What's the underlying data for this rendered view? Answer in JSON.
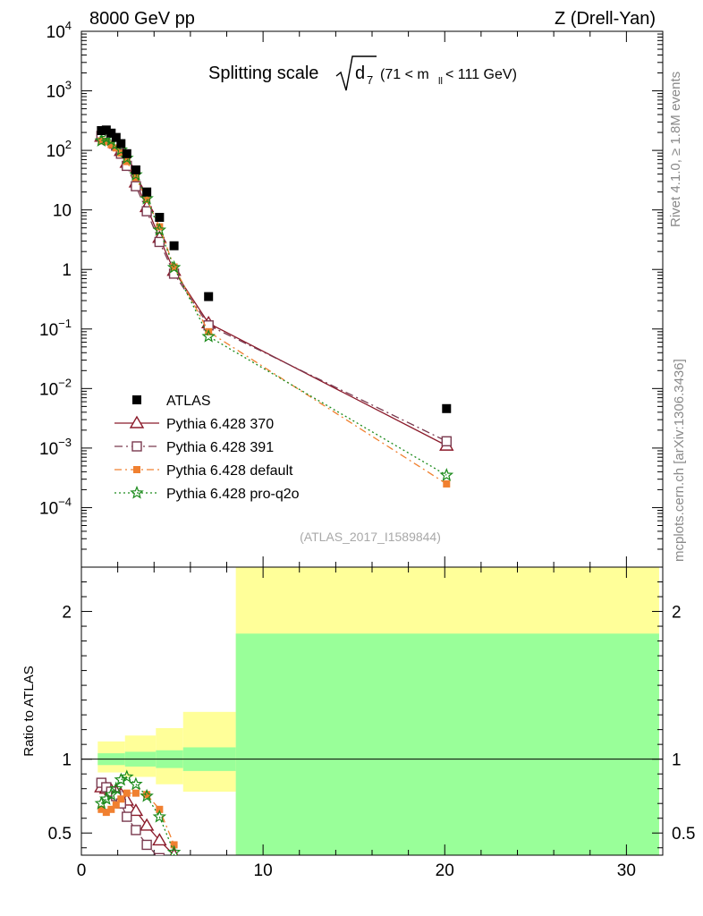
{
  "header": {
    "left": "8000 GeV pp",
    "right": "Z (Drell-Yan)"
  },
  "side_labels": {
    "rivet": "Rivet 4.1.0, ≥ 1.8M events",
    "mcplots": "mcplots.cern.ch [arXiv:1306.3436]"
  },
  "chart_data": {
    "type": "scatter",
    "title": "Splitting scale",
    "title_symbol": "d",
    "title_subscript": "7",
    "title_cut": "(71 < m",
    "title_cut_subscript": "ll",
    "title_cut_end": " < 111 GeV)",
    "reference": "(ATLAS_2017_I1589844)",
    "xlim": [
      0,
      32
    ],
    "ylim_log": [
      -5,
      4
    ],
    "ratio_ylim": [
      0.35,
      2.3
    ],
    "ratio_ylabel": "Ratio to ATLAS",
    "x_ticks": [
      {
        "v": 0,
        "label": "0"
      },
      {
        "v": 10,
        "label": "10"
      },
      {
        "v": 20,
        "label": "20"
      },
      {
        "v": 30,
        "label": "30"
      }
    ],
    "y_ticks": [
      {
        "v": -4,
        "base": "10",
        "exp": "−4"
      },
      {
        "v": -3,
        "base": "10",
        "exp": "−3"
      },
      {
        "v": -2,
        "base": "10",
        "exp": "−2"
      },
      {
        "v": -1,
        "base": "10",
        "exp": "−1"
      },
      {
        "v": 0,
        "base": "1",
        "exp": ""
      },
      {
        "v": 1,
        "base": "10",
        "exp": ""
      },
      {
        "v": 2,
        "base": "10",
        "exp": "2"
      },
      {
        "v": 3,
        "base": "10",
        "exp": "3"
      },
      {
        "v": 4,
        "base": "10",
        "exp": "4"
      }
    ],
    "ratio_ticks": [
      {
        "v": 0.5,
        "label": "0.5"
      },
      {
        "v": 1,
        "label": "1"
      },
      {
        "v": 2,
        "label": "2"
      }
    ],
    "legend_position": "lower-left",
    "data": {
      "name": "ATLAS",
      "color": "#000000",
      "x": [
        1.1,
        1.37,
        1.64,
        1.91,
        2.18,
        2.5,
        3.0,
        3.6,
        4.3,
        5.1,
        7.0,
        20.1
      ],
      "y": [
        215,
        220,
        195,
        165,
        130,
        88,
        47,
        20,
        7.5,
        2.5,
        0.35,
        0.0046
      ],
      "band_edges": [
        0.9,
        2.4,
        4.1,
        5.6,
        8.5,
        31.8
      ],
      "band_inner_up": [
        1.04,
        1.05,
        1.06,
        1.08,
        1.85
      ],
      "band_inner_dn": [
        0.96,
        0.95,
        0.94,
        0.92,
        0.0
      ],
      "band_outer_up": [
        1.12,
        1.16,
        1.21,
        1.32,
        2.3
      ],
      "band_outer_dn": [
        0.91,
        0.88,
        0.83,
        0.78,
        0.0
      ]
    },
    "series": [
      {
        "name": "Pythia 6.428 370",
        "color": "#8b1a2a",
        "marker": "triangle",
        "dash": "",
        "x": [
          1.1,
          1.37,
          1.64,
          1.91,
          2.18,
          2.5,
          3.0,
          3.6,
          4.3,
          5.1,
          7.0,
          20.1
        ],
        "y": [
          170,
          175,
          158,
          130,
          98,
          62,
          29,
          11.2,
          3.4,
          0.95,
          0.125,
          0.0011
        ],
        "ratio": [
          0.81,
          0.8,
          0.79,
          0.78,
          0.76,
          0.72,
          0.65,
          0.55,
          0.45,
          0.35
        ]
      },
      {
        "name": "Pythia 6.428 391",
        "color": "#7a3a4f",
        "marker": "square-open",
        "dash": "9,4,2,4",
        "x": [
          1.1,
          1.37,
          1.64,
          1.91,
          2.18,
          2.5,
          3.0,
          3.6,
          4.3,
          5.1,
          7.0,
          20.1
        ],
        "y": [
          175,
          172,
          150,
          120,
          88,
          55,
          25,
          9.5,
          2.9,
          0.85,
          0.115,
          0.0013
        ],
        "ratio": [
          0.84,
          0.81,
          0.78,
          0.75,
          0.7,
          0.61,
          0.52,
          0.42,
          0.33,
          0.3
        ]
      },
      {
        "name": "Pythia 6.428 default",
        "color": "#f08030",
        "marker": "square-filled",
        "dash": "8,4,2,4",
        "x": [
          1.1,
          1.37,
          1.64,
          1.91,
          2.18,
          2.5,
          3.0,
          3.6,
          4.3,
          5.1,
          7.0,
          20.1
        ],
        "y": [
          145,
          140,
          125,
          110,
          90,
          65,
          35,
          15,
          5.2,
          1.1,
          0.09,
          0.00025
        ],
        "ratio": [
          0.66,
          0.64,
          0.66,
          0.69,
          0.73,
          0.77,
          0.77,
          0.76,
          0.66,
          0.42
        ]
      },
      {
        "name": "Pythia 6.428 pro-q2o",
        "color": "#1a8a1a",
        "marker": "star",
        "dash": "2,3",
        "x": [
          1.1,
          1.37,
          1.64,
          1.91,
          2.18,
          2.5,
          3.0,
          3.6,
          4.3,
          5.1,
          7.0,
          20.1
        ],
        "y": [
          145,
          160,
          148,
          128,
          102,
          74,
          39,
          15.5,
          4.6,
          1.08,
          0.075,
          0.00035
        ],
        "ratio": [
          0.7,
          0.73,
          0.76,
          0.8,
          0.86,
          0.88,
          0.83,
          0.75,
          0.61,
          0.37
        ]
      }
    ]
  }
}
